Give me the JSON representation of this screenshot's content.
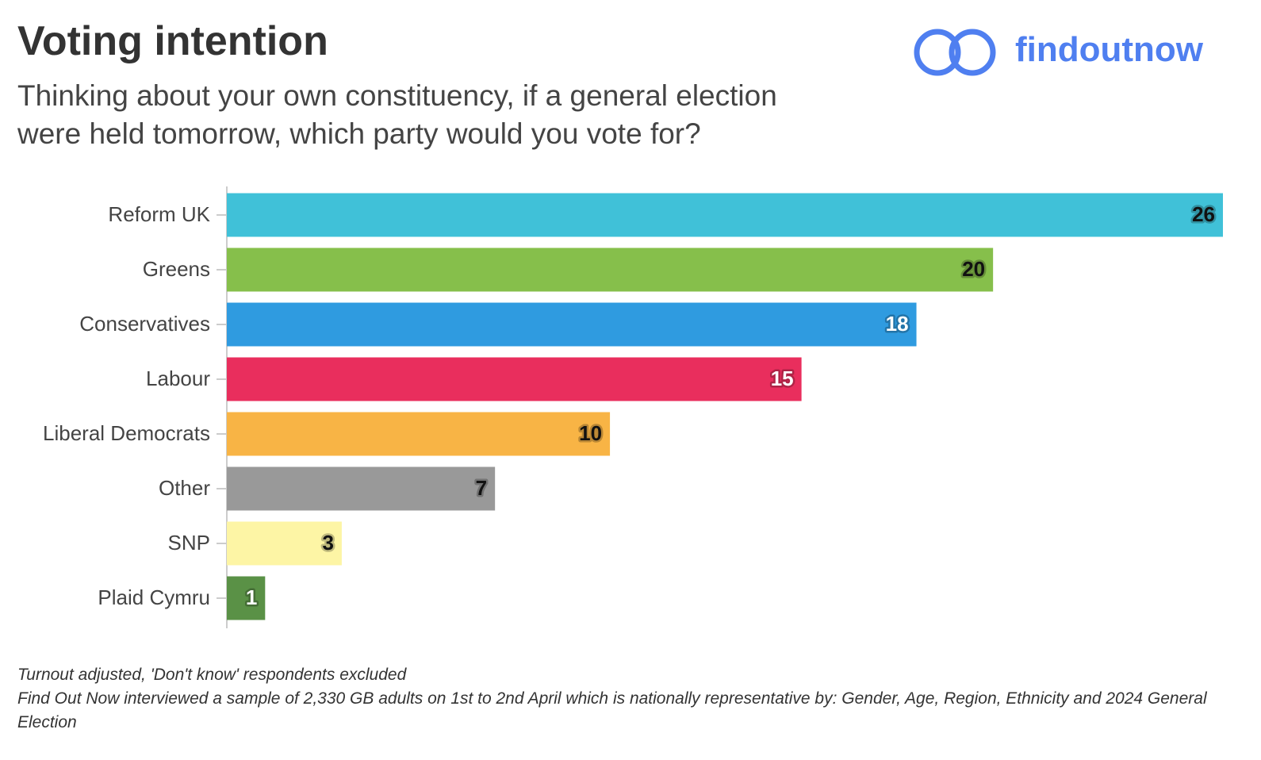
{
  "chart_data": {
    "type": "bar",
    "orientation": "horizontal",
    "title": "Voting intention",
    "subtitle": [
      "Thinking about your own constituency, if a general election",
      "were held tomorrow, which party would you vote for?"
    ],
    "logo": "findoutnow",
    "categories": [
      "Reform UK",
      "Greens",
      "Conservatives",
      "Labour",
      "Liberal Democrats",
      "Other",
      "SNP",
      "Plaid Cymru"
    ],
    "values": [
      26,
      20,
      18,
      15,
      10,
      7,
      3,
      1
    ],
    "colors": [
      "#40c1d8",
      "#86bf4b",
      "#2f9be0",
      "#e92e5d",
      "#f8b445",
      "#999999",
      "#fdf5a5",
      "#5a9146"
    ],
    "notes": [
      "Turnout adjusted, 'Don't know' respondents excluded",
      "Find Out Now interviewed a sample of 2,330 GB adults on 1st to 2nd April which is nationally representative by: Gender, Age, Region, Ethnicity and 2024 General Election"
    ]
  }
}
